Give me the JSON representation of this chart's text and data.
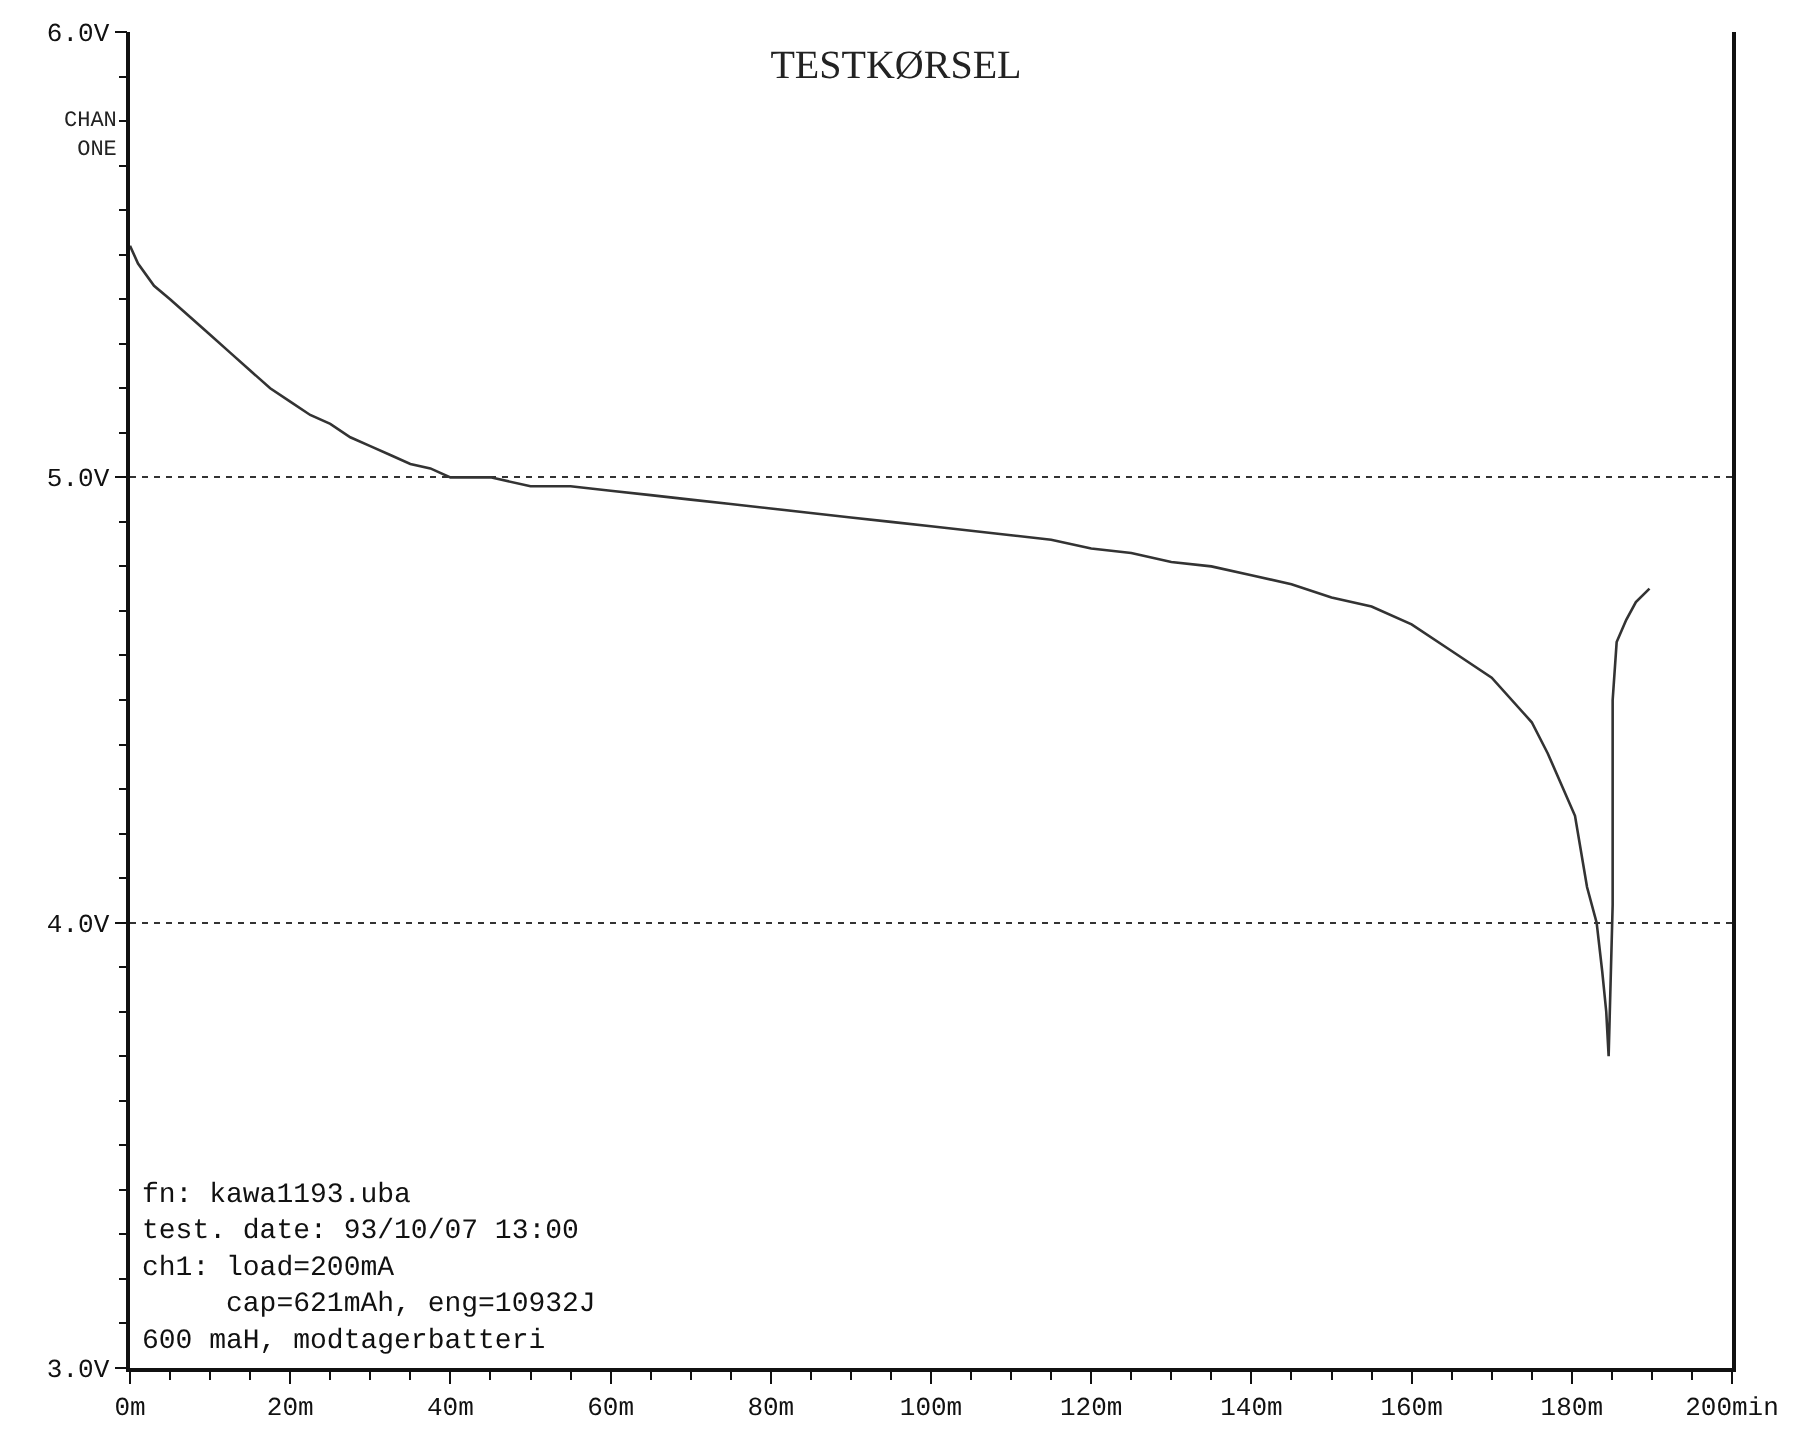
{
  "chart_data": {
    "type": "line",
    "title": "TESTKØRSEL",
    "annotations": [
      "CHAN ONE",
      "fn: kawa1193.uba\ntest. date: 93/10/07 13:00\nch1: load=200mA\n     cap=621mAh, eng=10932J\n600 maH, modtagerbatteri"
    ],
    "series": [
      {
        "color": "#333333",
        "x": [
          0,
          1,
          3,
          5,
          7.5,
          10,
          12.5,
          15,
          17.5,
          20,
          22.5,
          25,
          27.5,
          30,
          32.5,
          35,
          37.5,
          40,
          45,
          50,
          55,
          60,
          65,
          70,
          75,
          80,
          85,
          90,
          95,
          100,
          105,
          110,
          115,
          120,
          125,
          130,
          135,
          140,
          145,
          150,
          155,
          160,
          165,
          170,
          175,
          177,
          180.4,
          181.9,
          183.1,
          183.8,
          184.3,
          184.6,
          185.1,
          185.1,
          185.6,
          186.8,
          188,
          189.7
        ],
        "values": [
          5.52,
          5.48,
          5.43,
          5.4,
          5.36,
          5.32,
          5.28,
          5.24,
          5.2,
          5.17,
          5.14,
          5.12,
          5.09,
          5.07,
          5.05,
          5.03,
          5.02,
          5.0,
          5.0,
          4.98,
          4.98,
          4.97,
          4.96,
          4.95,
          4.94,
          4.93,
          4.92,
          4.91,
          4.9,
          4.89,
          4.88,
          4.87,
          4.86,
          4.84,
          4.83,
          4.81,
          4.8,
          4.78,
          4.76,
          4.73,
          4.71,
          4.67,
          4.61,
          4.55,
          4.45,
          4.38,
          4.24,
          4.08,
          4.0,
          3.89,
          3.8,
          3.7,
          4.04,
          4.5,
          4.63,
          4.68,
          4.72,
          4.75
        ]
      }
    ],
    "xlim": [
      0,
      200
    ],
    "ylim": [
      3,
      6
    ],
    "xticks": [
      {
        "value": 0,
        "label": "0m"
      },
      {
        "value": 20,
        "label": "20m"
      },
      {
        "value": 40,
        "label": "40m"
      },
      {
        "value": 60,
        "label": "60m"
      },
      {
        "value": 80,
        "label": "80m"
      },
      {
        "value": 100,
        "label": "100m"
      },
      {
        "value": 120,
        "label": "120m"
      },
      {
        "value": 140,
        "label": "140m"
      },
      {
        "value": 160,
        "label": "160m"
      },
      {
        "value": 180,
        "label": "180m"
      },
      {
        "value": 200,
        "label": "200min"
      }
    ],
    "yticks": [
      {
        "value": 3,
        "label": "3.0V"
      },
      {
        "value": 4,
        "label": "4.0V"
      },
      {
        "value": 5,
        "label": "5.0V"
      },
      {
        "value": 6,
        "label": "6.0V"
      }
    ],
    "grid": "y",
    "line_style": "solid",
    "marker": "none"
  }
}
